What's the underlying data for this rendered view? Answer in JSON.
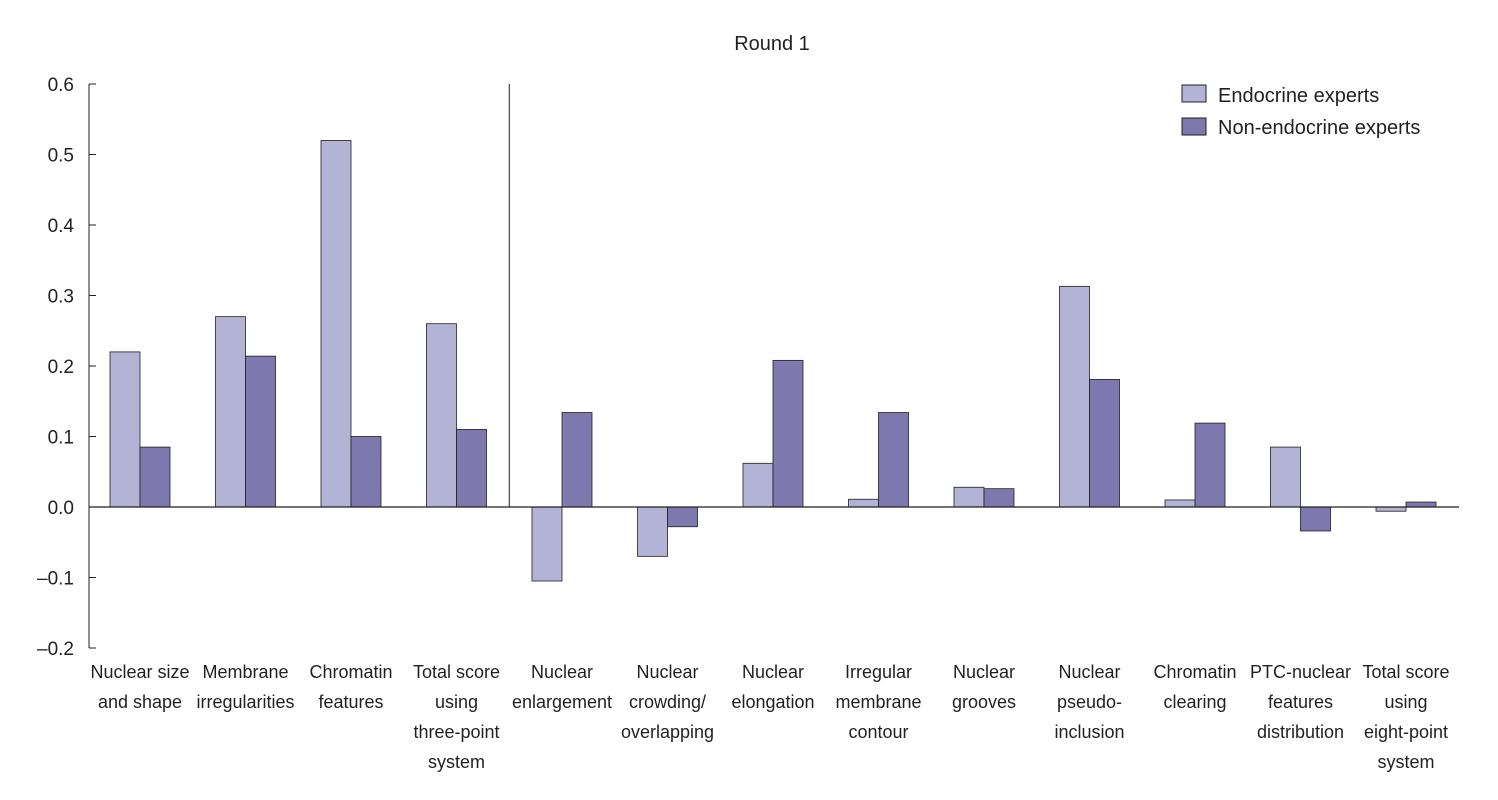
{
  "chart_data": {
    "type": "bar",
    "title": "Round 1",
    "xlabel": "",
    "ylabel": "",
    "ylim": [
      -0.2,
      0.6
    ],
    "yticks": [
      "0.6",
      "0.5",
      "0.4",
      "0.3",
      "0.2",
      "0.1",
      "0.0",
      "–0.1",
      "–0.2"
    ],
    "ytick_values": [
      0.6,
      0.5,
      0.4,
      0.3,
      0.2,
      0.1,
      0.0,
      -0.1,
      -0.2
    ],
    "grid": false,
    "legend_position": "top-right",
    "categories": [
      [
        "Nuclear size",
        "and shape"
      ],
      [
        "Membrane",
        "irregularities"
      ],
      [
        "Chromatin",
        "features"
      ],
      [
        "Total score",
        "using",
        "three-point",
        "system"
      ],
      [
        "Nuclear",
        "enlargement"
      ],
      [
        "Nuclear",
        "crowding/",
        "overlapping"
      ],
      [
        "Nuclear",
        "elongation"
      ],
      [
        "Irregular",
        "membrane",
        "contour"
      ],
      [
        "Nuclear",
        "grooves"
      ],
      [
        "Nuclear",
        "pseudo-",
        "inclusion"
      ],
      [
        "Chromatin",
        "clearing"
      ],
      [
        "PTC-nuclear",
        "features",
        "distribution"
      ],
      [
        "Total score",
        "using",
        "eight-point",
        "system"
      ]
    ],
    "series": [
      {
        "name": "Endocrine experts",
        "color": "#b3b3d5",
        "values": [
          0.22,
          0.27,
          0.52,
          0.26,
          -0.105,
          -0.07,
          0.062,
          0.011,
          0.028,
          0.313,
          0.01,
          0.085,
          -0.006
        ]
      },
      {
        "name": "Non-endocrine experts",
        "color": "#7d78ae",
        "values": [
          0.085,
          0.214,
          0.1,
          0.11,
          0.134,
          -0.028,
          0.208,
          0.134,
          0.026,
          0.181,
          0.119,
          -0.034,
          0.007
        ]
      }
    ],
    "separator_after_category": 4
  }
}
